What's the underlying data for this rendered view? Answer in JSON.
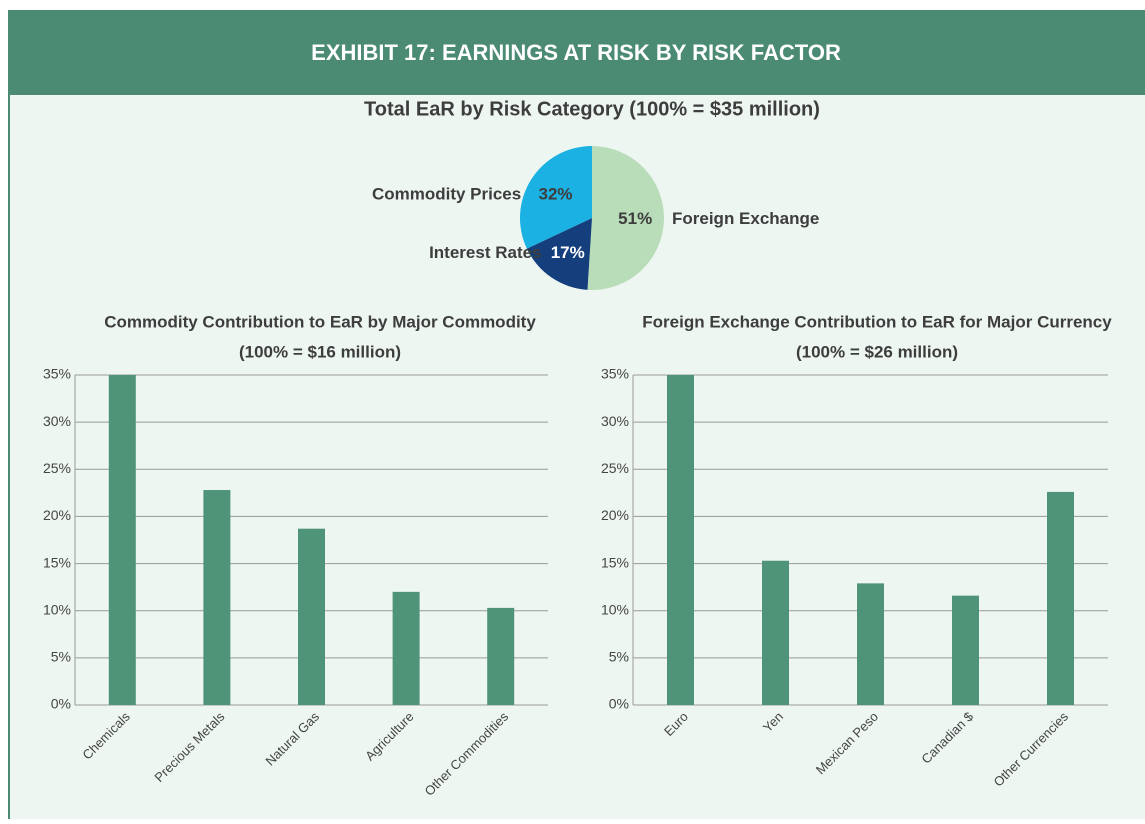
{
  "header": {
    "title": "EXHIBIT 17: EARNINGS AT RISK BY RISK FACTOR"
  },
  "chart_data": [
    {
      "type": "pie",
      "title": "Total EaR by Risk Category (100% = $35 million)",
      "categories": [
        "Foreign Exchange",
        "Interest Rates",
        "Commodity Prices"
      ],
      "values": [
        51,
        17,
        32
      ],
      "value_labels": [
        "51%",
        "17%",
        "32%"
      ],
      "colors": [
        "#b9ddb9",
        "#143f7c",
        "#1bb1e2"
      ],
      "label_colors": [
        "#3d3d3d",
        "#ffffff",
        "#3d3d3d"
      ]
    },
    {
      "type": "bar",
      "title": "Commodity Contribution to EaR by Major Commodity",
      "subtitle": "(100% = $16 million)",
      "categories": [
        "Chemicals",
        "Precious Metals",
        "Natural Gas",
        "Agriculture",
        "Other Commodities"
      ],
      "values": [
        35,
        22.8,
        18.7,
        12,
        10.3
      ],
      "color": "#4f9479",
      "ylim": [
        0,
        35
      ],
      "yticks": [
        {
          "value": 0,
          "label": "0%"
        },
        {
          "value": 5,
          "label": "5%"
        },
        {
          "value": 10,
          "label": "10%"
        },
        {
          "value": 15,
          "label": "15%"
        },
        {
          "value": 20,
          "label": "20%"
        },
        {
          "value": 25,
          "label": "25%"
        },
        {
          "value": 30,
          "label": "30%"
        },
        {
          "value": 35,
          "label": "35%"
        }
      ],
      "grid": true
    },
    {
      "type": "bar",
      "title": "Foreign Exchange Contribution to EaR for Major Currency",
      "subtitle": "(100% = $26 million)",
      "categories": [
        "Euro",
        "Yen",
        "Mexican Peso",
        "Canadian $",
        "Other Currencies"
      ],
      "values": [
        35,
        15.3,
        12.9,
        11.6,
        22.6
      ],
      "color": "#4f9479",
      "ylim": [
        0,
        35
      ],
      "yticks": [
        {
          "value": 0,
          "label": "0%"
        },
        {
          "value": 5,
          "label": "5%"
        },
        {
          "value": 10,
          "label": "10%"
        },
        {
          "value": 15,
          "label": "15%"
        },
        {
          "value": 20,
          "label": "20%"
        },
        {
          "value": 25,
          "label": "25%"
        },
        {
          "value": 30,
          "label": "30%"
        },
        {
          "value": 35,
          "label": "35%"
        }
      ],
      "grid": true
    }
  ]
}
